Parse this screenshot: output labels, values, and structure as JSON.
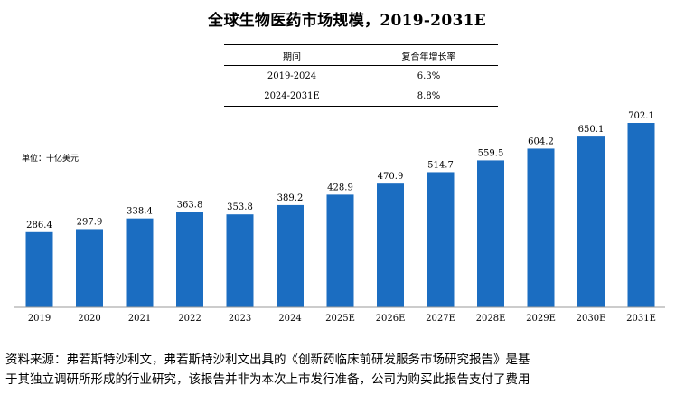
{
  "title": "全球生物医药市场规模，2019-2031E",
  "cagr_table": {
    "headers": [
      "期间",
      "复合年增长率"
    ],
    "rows": [
      [
        "2019-2024",
        "6.3%"
      ],
      [
        "2024-2031E",
        "8.8%"
      ]
    ]
  },
  "unit_label": "单位：十亿美元",
  "source": {
    "line1": "资料来源：弗若斯特沙利文，弗若斯特沙利文出具的《创新药临床前研发服务市场研究报告》是基",
    "line2": "于其独立调研所形成的行业研究，该报告并非为本次上市发行准备，公司为购买此报告支付了费用"
  },
  "chart_data": {
    "type": "bar",
    "title": "全球生物医药市场规模，2019-2031E",
    "categories": [
      "2019",
      "2020",
      "2021",
      "2022",
      "2023",
      "2024",
      "2025E",
      "2026E",
      "2027E",
      "2028E",
      "2029E",
      "2030E",
      "2031E"
    ],
    "values": [
      286.4,
      297.9,
      338.4,
      363.8,
      353.8,
      389.2,
      428.9,
      470.9,
      514.7,
      559.5,
      604.2,
      650.1,
      702.1
    ],
    "labels": [
      "286.4",
      "297.9",
      "338.4",
      "363.8",
      "353.8",
      "389.2",
      "428.9",
      "470.9",
      "514.7",
      "559.5",
      "604.2",
      "650.1",
      "702.1"
    ],
    "ylabel": "单位：十亿美元",
    "xlabel": "",
    "ylim": [
      0,
      702.1
    ],
    "bar_color": "#1b6dc1",
    "grid": false
  }
}
